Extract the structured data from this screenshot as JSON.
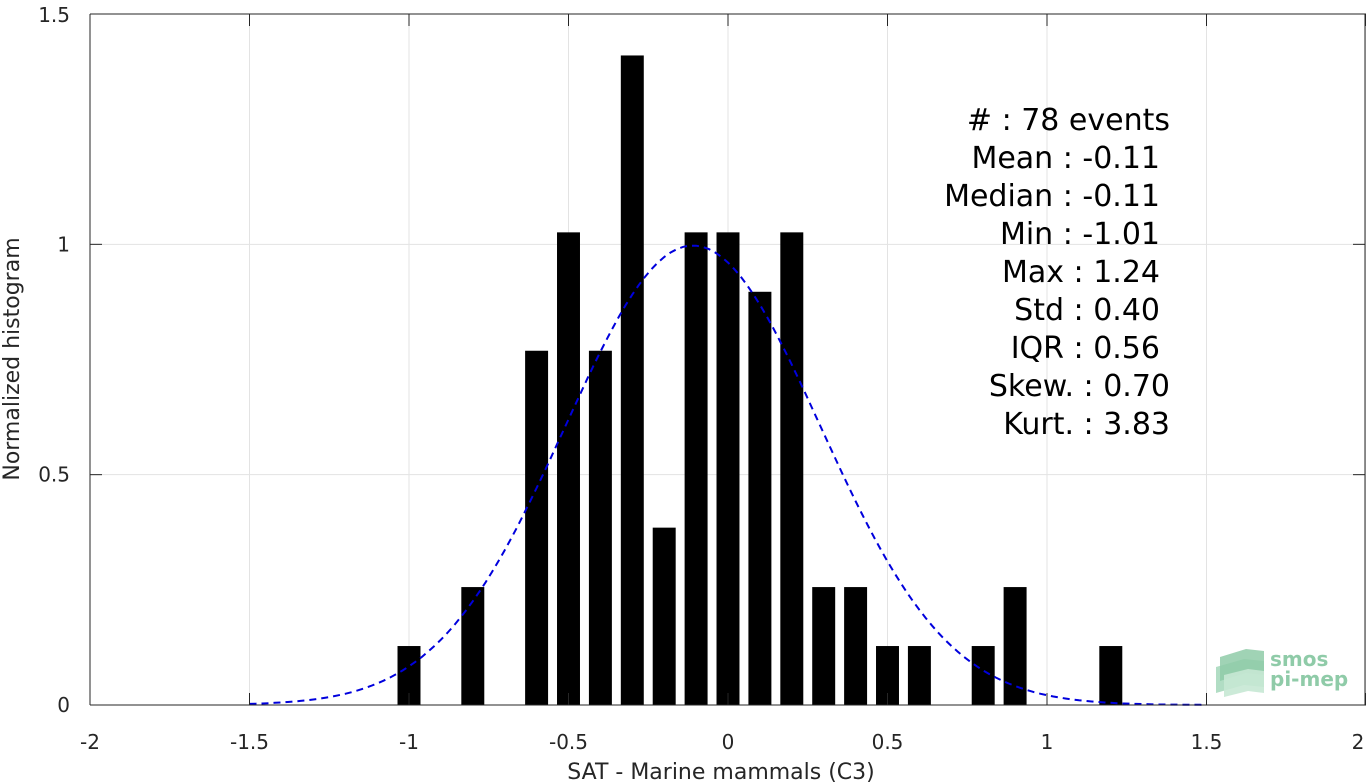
{
  "chart_data": {
    "type": "bar",
    "xlabel": "SAT - Marine mammals (C3)",
    "ylabel": "Normalized histogram",
    "xlim": [
      -2,
      2
    ],
    "ylim": [
      0,
      1.5
    ],
    "xticks": [
      "-2",
      "-1.5",
      "-1",
      "-0.5",
      "0",
      "0.5",
      "1",
      "1.5",
      "2"
    ],
    "yticks": [
      "0",
      "0.5",
      "1",
      "1.5"
    ],
    "grid": true,
    "bin_width": 0.1,
    "bars": [
      {
        "x": -1.0,
        "y": 0.128
      },
      {
        "x": -0.8,
        "y": 0.256
      },
      {
        "x": -0.6,
        "y": 0.769
      },
      {
        "x": -0.5,
        "y": 1.026
      },
      {
        "x": -0.4,
        "y": 0.769
      },
      {
        "x": -0.3,
        "y": 1.41
      },
      {
        "x": -0.2,
        "y": 0.385
      },
      {
        "x": -0.1,
        "y": 1.026
      },
      {
        "x": 0.0,
        "y": 1.026
      },
      {
        "x": 0.1,
        "y": 0.897
      },
      {
        "x": 0.2,
        "y": 1.026
      },
      {
        "x": 0.3,
        "y": 0.256
      },
      {
        "x": 0.4,
        "y": 0.256
      },
      {
        "x": 0.5,
        "y": 0.128
      },
      {
        "x": 0.6,
        "y": 0.128
      },
      {
        "x": 0.8,
        "y": 0.128
      },
      {
        "x": 0.9,
        "y": 0.256
      },
      {
        "x": 1.2,
        "y": 0.128
      }
    ],
    "fit_curve": {
      "style": "dashed",
      "color": "#0000dd",
      "mean": -0.11,
      "std": 0.4,
      "x_range": [
        -1.5,
        1.5
      ]
    },
    "stats": [
      {
        "text": "#  : 78 events"
      },
      {
        "text": "Mean : -0.11"
      },
      {
        "text": "Median : -0.11"
      },
      {
        "text": "Min : -1.01"
      },
      {
        "text": "Max : 1.24"
      },
      {
        "text": "Std : 0.40"
      },
      {
        "text": "IQR : 0.56"
      },
      {
        "text": "Skew. : 0.70"
      },
      {
        "text": "Kurt. : 3.83"
      }
    ]
  },
  "logo": {
    "line1": "smos",
    "line2": "pi-mep",
    "color": "#8fcba8"
  }
}
